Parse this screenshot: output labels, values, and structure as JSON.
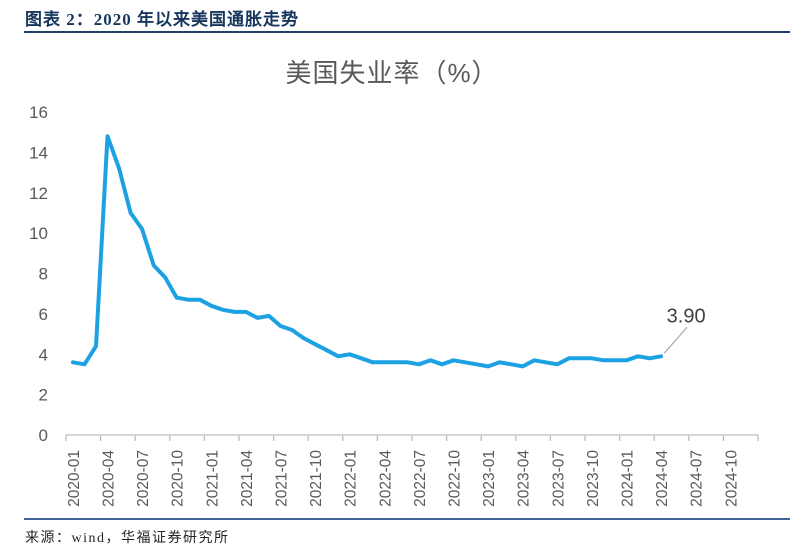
{
  "header": {
    "title": "图表 2：2020 年以来美国通胀走势"
  },
  "footer": {
    "source": "来源：wind，华福证券研究所"
  },
  "chart_data": {
    "type": "line",
    "title": "美国失业率（%）",
    "x": [
      "2020-01",
      "2020-02",
      "2020-03",
      "2020-04",
      "2020-05",
      "2020-06",
      "2020-07",
      "2020-08",
      "2020-09",
      "2020-10",
      "2020-11",
      "2020-12",
      "2021-01",
      "2021-02",
      "2021-03",
      "2021-04",
      "2021-05",
      "2021-06",
      "2021-07",
      "2021-08",
      "2021-09",
      "2021-10",
      "2021-11",
      "2021-12",
      "2022-01",
      "2022-02",
      "2022-03",
      "2022-04",
      "2022-05",
      "2022-06",
      "2022-07",
      "2022-08",
      "2022-09",
      "2022-10",
      "2022-11",
      "2022-12",
      "2023-01",
      "2023-02",
      "2023-03",
      "2023-04",
      "2023-05",
      "2023-06",
      "2023-07",
      "2023-08",
      "2023-09",
      "2023-10",
      "2023-11",
      "2023-12",
      "2024-01",
      "2024-02",
      "2024-03",
      "2024-04"
    ],
    "values": [
      3.6,
      3.5,
      4.4,
      14.8,
      13.2,
      11.0,
      10.2,
      8.4,
      7.8,
      6.8,
      6.7,
      6.7,
      6.4,
      6.2,
      6.1,
      6.1,
      5.8,
      5.9,
      5.4,
      5.2,
      4.8,
      4.5,
      4.2,
      3.9,
      4.0,
      3.8,
      3.6,
      3.6,
      3.6,
      3.6,
      3.5,
      3.7,
      3.5,
      3.7,
      3.6,
      3.5,
      3.4,
      3.6,
      3.5,
      3.4,
      3.7,
      3.6,
      3.5,
      3.8,
      3.8,
      3.8,
      3.7,
      3.7,
      3.7,
      3.9,
      3.8,
      3.9
    ],
    "x_tick_labels": [
      "2020-01",
      "2020-04",
      "2020-07",
      "2020-10",
      "2021-01",
      "2021-04",
      "2021-07",
      "2021-10",
      "2022-01",
      "2022-04",
      "2022-07",
      "2022-10",
      "2023-01",
      "2023-04",
      "2023-07",
      "2023-10",
      "2024-01",
      "2024-04",
      "2024-07",
      "2024-10"
    ],
    "x_axis_total_months": 60,
    "y_ticks": [
      0,
      2,
      4,
      6,
      8,
      10,
      12,
      14,
      16
    ],
    "ylim": [
      0,
      16
    ],
    "grid": false,
    "legend": null,
    "last_point_label": "3.90",
    "colors": {
      "line": "#1CA2E3",
      "axis": "#BFBFBF",
      "tick_label": "#595959",
      "title": "#595959",
      "data_label": "#404040",
      "leader_line": "#A6A6A6",
      "header_accent": "#17365D"
    }
  }
}
